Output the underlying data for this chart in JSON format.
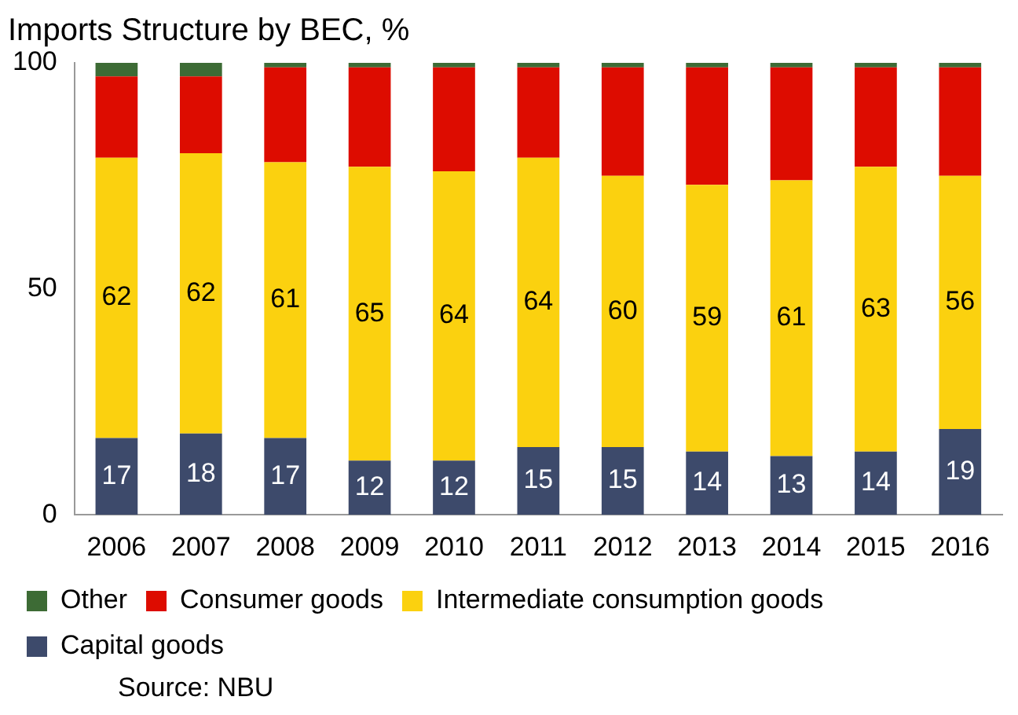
{
  "chart_data": {
    "type": "bar",
    "title": "Imports Structure by BEC, %",
    "stacked": true,
    "categories": [
      "2006",
      "2007",
      "2008",
      "2009",
      "2010",
      "2011",
      "2012",
      "2013",
      "2014",
      "2015",
      "2016"
    ],
    "ylim": [
      0,
      100
    ],
    "yticks": [
      0,
      50,
      100
    ],
    "grid": false,
    "legend": "bottom",
    "annotations": [
      "Source: NBU"
    ],
    "series": [
      {
        "name": "Capital goods",
        "color": "#3d4a6b",
        "values": [
          17,
          18,
          17,
          12,
          12,
          15,
          15,
          14,
          13,
          14,
          19
        ],
        "value_labels": [
          "17",
          "18",
          "17",
          "12",
          "12",
          "15",
          "15",
          "14",
          "13",
          "14",
          "19"
        ]
      },
      {
        "name": "Intermediate consumption goods",
        "color": "#fbd10f",
        "values": [
          62,
          62,
          61,
          65,
          64,
          64,
          60,
          59,
          61,
          63,
          56
        ],
        "value_labels": [
          "62",
          "62",
          "61",
          "65",
          "64",
          "64",
          "60",
          "59",
          "61",
          "63",
          "56"
        ]
      },
      {
        "name": "Consumer goods",
        "color": "#dd0c00",
        "values": [
          18,
          17,
          21,
          22,
          23,
          20,
          24,
          26,
          25,
          22,
          24
        ]
      },
      {
        "name": "Other",
        "color": "#3d6b35",
        "values": [
          3,
          3,
          1,
          1,
          1,
          1,
          1,
          1,
          1,
          1,
          1
        ]
      }
    ]
  }
}
